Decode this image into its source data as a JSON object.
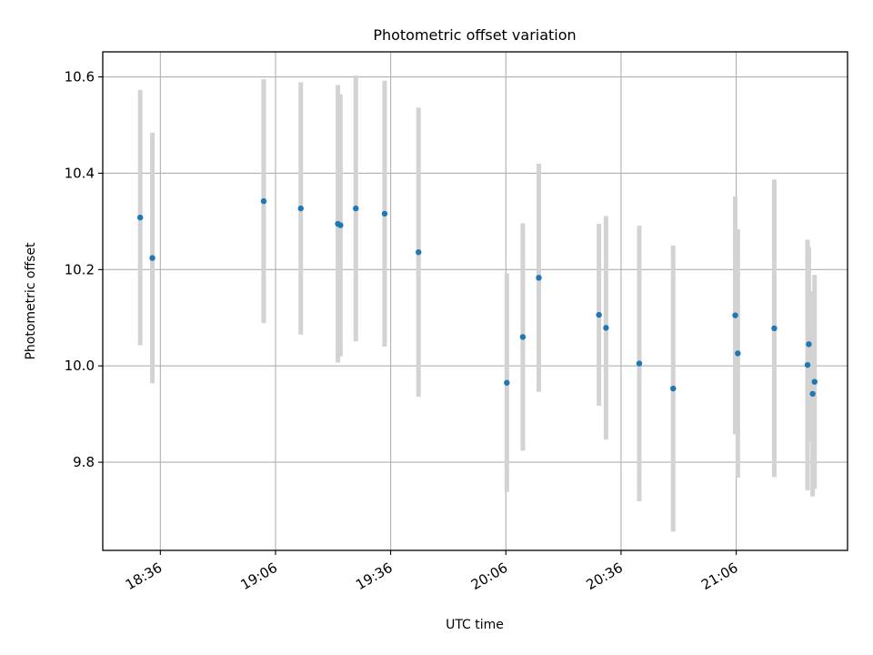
{
  "chart_data": {
    "type": "scatter",
    "title": "Photometric offset variation",
    "xlabel": "UTC time",
    "ylabel": "Photometric offset",
    "x_unit": "UTC (HH:MM)",
    "xlim": [
      "18:21",
      "21:35"
    ],
    "ylim": [
      9.617,
      10.652
    ],
    "x_ticks": [
      "18:36",
      "19:06",
      "19:36",
      "20:06",
      "20:36",
      "21:06"
    ],
    "y_ticks": [
      9.8,
      10.0,
      10.2,
      10.4,
      10.6
    ],
    "y_tick_labels": [
      "9.8",
      "10.0",
      "10.2",
      "10.4",
      "10.6"
    ],
    "grid": true,
    "error_bar_color": "#d3d3d3",
    "marker_color": "#1f77b4",
    "points": [
      {
        "time": "18:30:45",
        "value": 10.308,
        "err": 0.265
      },
      {
        "time": "18:33:55",
        "value": 10.224,
        "err": 0.26
      },
      {
        "time": "19:02:55",
        "value": 10.342,
        "err": 0.253
      },
      {
        "time": "19:12:35",
        "value": 10.327,
        "err": 0.262
      },
      {
        "time": "19:22:15",
        "value": 10.295,
        "err": 0.288
      },
      {
        "time": "19:22:55",
        "value": 10.292,
        "err": 0.272
      },
      {
        "time": "19:26:55",
        "value": 10.327,
        "err": 0.276
      },
      {
        "time": "19:34:25",
        "value": 10.316,
        "err": 0.276
      },
      {
        "time": "19:43:15",
        "value": 10.236,
        "err": 0.3
      },
      {
        "time": "20:06:15",
        "value": 9.965,
        "err": 0.227
      },
      {
        "time": "20:10:25",
        "value": 10.06,
        "err": 0.236
      },
      {
        "time": "20:14:35",
        "value": 10.183,
        "err": 0.237
      },
      {
        "time": "20:30:15",
        "value": 10.106,
        "err": 0.189
      },
      {
        "time": "20:32:05",
        "value": 10.079,
        "err": 0.232
      },
      {
        "time": "20:40:45",
        "value": 10.005,
        "err": 0.286
      },
      {
        "time": "20:49:35",
        "value": 9.953,
        "err": 0.297
      },
      {
        "time": "21:05:45",
        "value": 10.105,
        "err": 0.247
      },
      {
        "time": "21:06:25",
        "value": 10.026,
        "err": 0.258
      },
      {
        "time": "21:15:55",
        "value": 10.078,
        "err": 0.309
      },
      {
        "time": "21:24:35",
        "value": 10.002,
        "err": 0.26
      },
      {
        "time": "21:24:55",
        "value": 10.045,
        "err": 0.202
      },
      {
        "time": "21:25:55",
        "value": 9.942,
        "err": 0.213
      },
      {
        "time": "21:26:25",
        "value": 9.967,
        "err": 0.222
      }
    ]
  }
}
